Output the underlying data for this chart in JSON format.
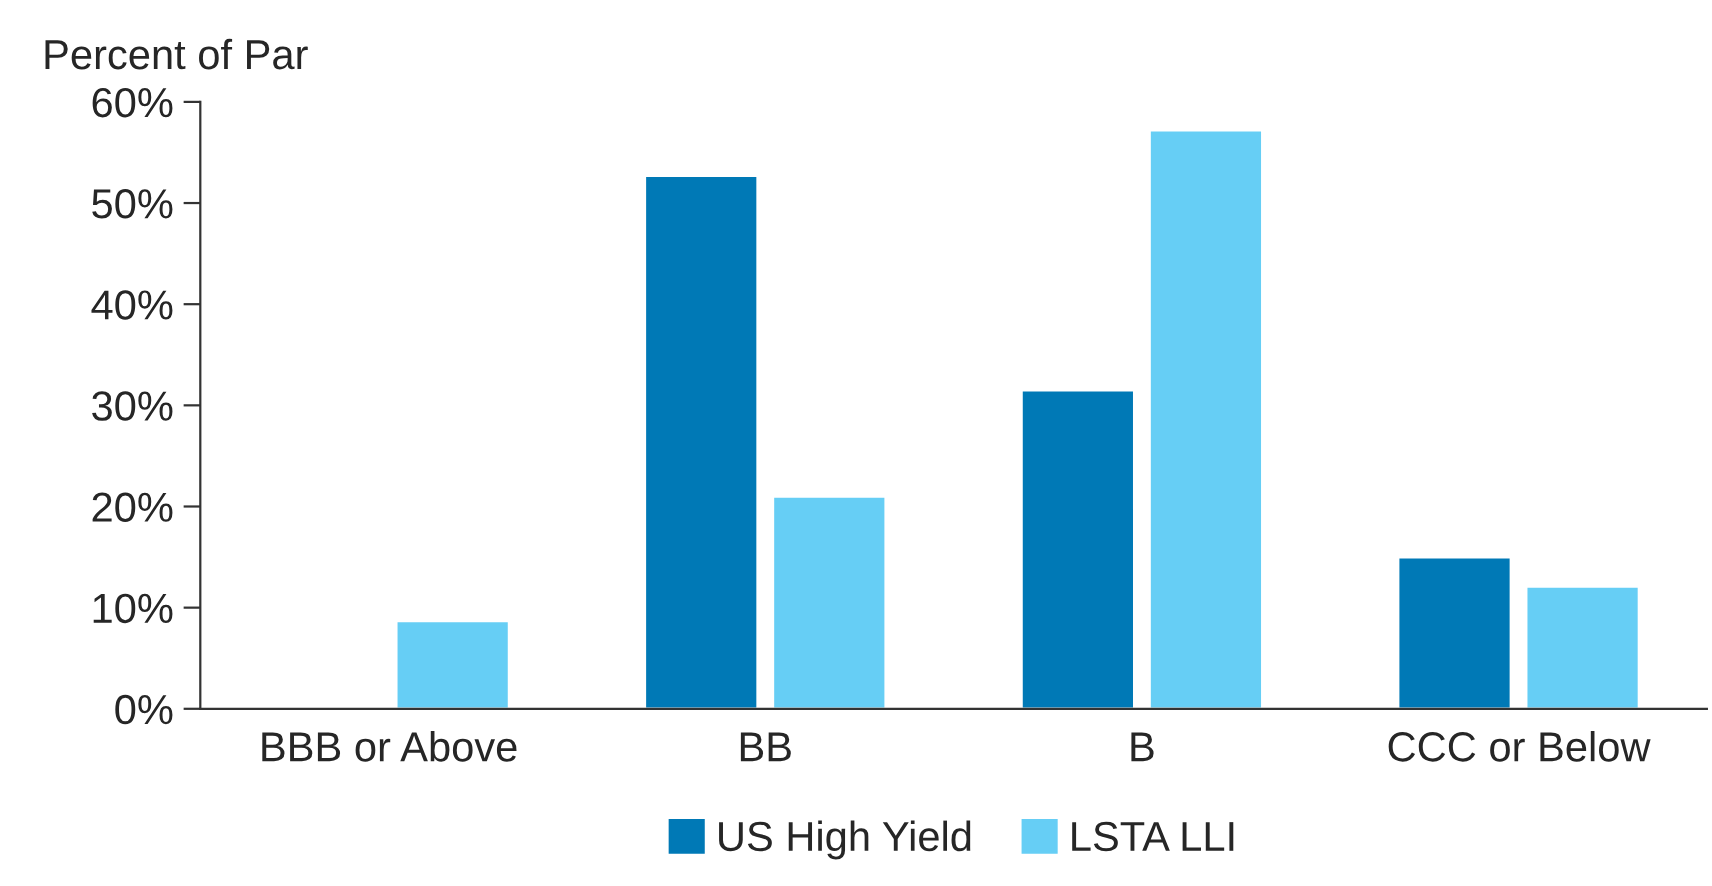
{
  "chart_data": {
    "type": "bar",
    "ylabel": "Percent of Par",
    "categories": [
      "BBB or Above",
      "BB",
      "B",
      "CCC or Below"
    ],
    "series": [
      {
        "name": "US High Yield",
        "color": "#0079b6",
        "values": [
          null,
          52.7,
          31.5,
          15.0
        ]
      },
      {
        "name": "LSTA LLI",
        "color": "#66cef5",
        "values": [
          8.7,
          21.0,
          57.2,
          12.1
        ]
      }
    ],
    "ylim": [
      0,
      60
    ],
    "yticks": [
      {
        "value": 0,
        "label": "0%"
      },
      {
        "value": 10,
        "label": "10%"
      },
      {
        "value": 20,
        "label": "20%"
      },
      {
        "value": 30,
        "label": "30%"
      },
      {
        "value": 40,
        "label": "40%"
      },
      {
        "value": 50,
        "label": "50%"
      },
      {
        "value": 60,
        "label": "60%"
      }
    ],
    "grid": false,
    "legend": "bottom"
  }
}
